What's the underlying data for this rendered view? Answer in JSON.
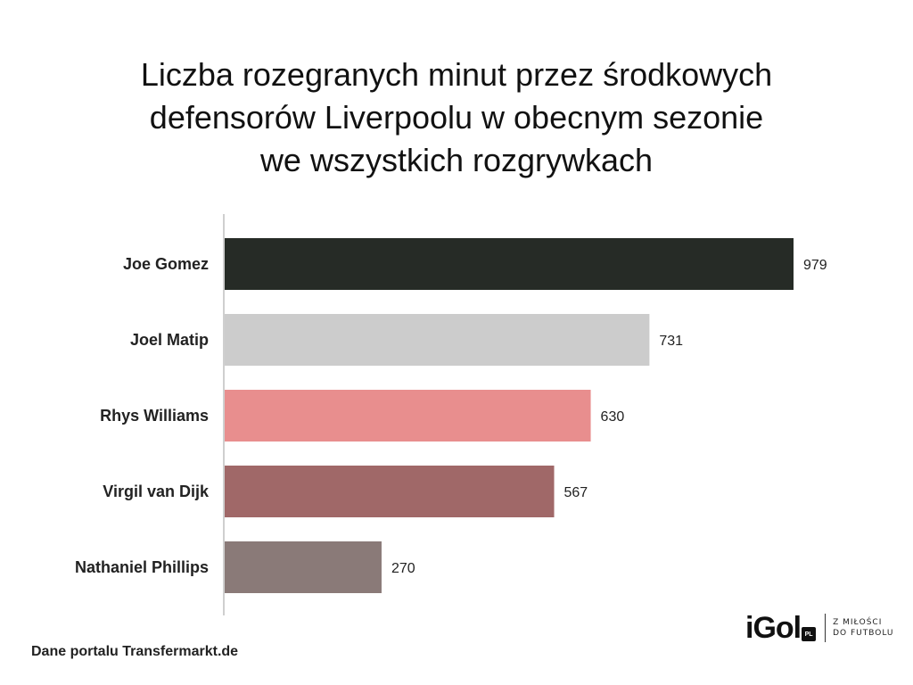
{
  "title_lines": [
    "Liczba rozegranych minut przez środkowych",
    "defensorów Liverpoolu w obecnym sezonie",
    "we wszystkich rozgrywkach"
  ],
  "source": "Dane portalu Transfermarkt.de",
  "logo": {
    "wordmark": "iGol",
    "badge": "PL",
    "tagline": [
      "Z MIŁOŚCI",
      "DO FUTBOLU"
    ]
  },
  "chart_data": {
    "type": "bar",
    "orientation": "horizontal",
    "title": "Liczba rozegranych minut przez środkowych defensorów Liverpoolu w obecnym sezonie we wszystkich rozgrywkach",
    "categories": [
      "Joe Gomez",
      "Joel Matip",
      "Rhys Williams",
      "Virgil van Dijk",
      "Nathaniel Phillips"
    ],
    "values": [
      979,
      731,
      630,
      567,
      270
    ],
    "colors": [
      "#262b26",
      "#cccccc",
      "#e88e8e",
      "#a06868",
      "#8a7a78"
    ],
    "xlim": [
      0,
      979
    ],
    "xlabel": "",
    "ylabel": "",
    "data_labels": true,
    "grid": false,
    "legend": false
  }
}
